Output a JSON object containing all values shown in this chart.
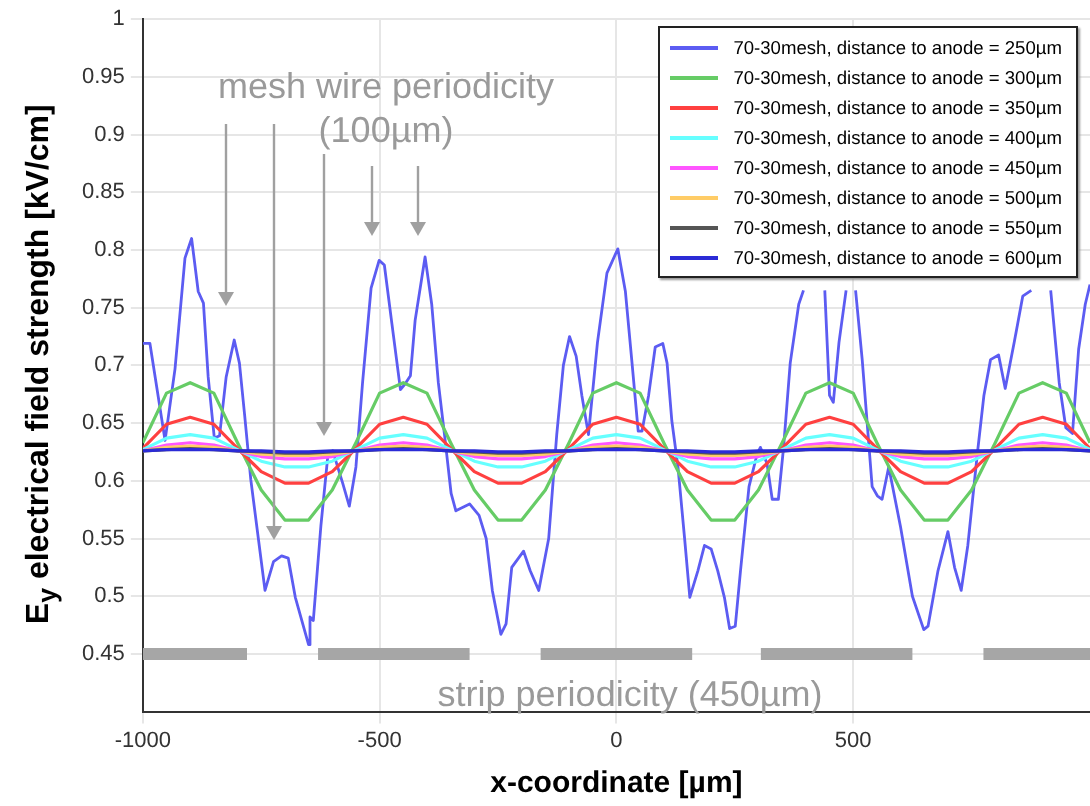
{
  "chart_data": {
    "type": "line",
    "xlabel": "x-coordinate [µm]",
    "ylabel": "E$_{y}$ electrical field strength [kV/cm]",
    "annotations": [
      "mesh wire periodicity (100µm)",
      "strip periodicity (450µm)"
    ],
    "x": [
      -1000,
      -950,
      -900,
      -850,
      -800,
      -750,
      -700,
      -650,
      -600,
      -550,
      -500,
      -450,
      -400,
      -350,
      -300,
      -250,
      -200,
      -150,
      -100,
      -50,
      0,
      50,
      100,
      150,
      200,
      250,
      300,
      350,
      400,
      450,
      500,
      550,
      600,
      650,
      700,
      750,
      800,
      850,
      900,
      950,
      1000
    ],
    "xlim": [
      -1000,
      1000
    ],
    "xticks": [
      -1000,
      -500,
      0,
      500
    ],
    "ylim": [
      0.4,
      1
    ],
    "yticks": [
      0.45,
      0.5,
      0.55,
      0.6,
      0.65,
      0.7,
      0.75,
      0.8,
      0.85,
      0.9,
      0.95,
      1
    ],
    "grid": true,
    "legend": "top right",
    "marker": "none",
    "line_style": "solid",
    "series": [
      {
        "name": "70-30mesh, distance to anode = 250µm",
        "color": "#5c5cf2",
        "x": [
          -1000,
          -985,
          -953,
          -932,
          -911,
          -897,
          -883,
          -872,
          -862,
          -849,
          -838,
          -824,
          -807,
          -796,
          -785,
          -772,
          -742,
          -724,
          -707,
          -693,
          -678,
          -650,
          -647,
          -640,
          -624,
          -609,
          -599,
          -578,
          -564,
          -550,
          -536,
          -518,
          -501,
          -490,
          -474,
          -456,
          -446,
          -435,
          -425,
          -404,
          -390,
          -376,
          -363,
          -349,
          -339,
          -310,
          -290,
          -275,
          -262,
          -244,
          -233,
          -221,
          -196,
          -182,
          -164,
          -143,
          -126,
          -112,
          -99,
          -85,
          -73,
          -59,
          -40,
          -20,
          3,
          19,
          33,
          46,
          54,
          68,
          82,
          98,
          107,
          117,
          130,
          144,
          155,
          172,
          186,
          200,
          214,
          228,
          239,
          251,
          262,
          280,
          297,
          304,
          318,
          329,
          342,
          353,
          367,
          385,
          395,
          415,
          440,
          450,
          458,
          470,
          485,
          495,
          505,
          519,
          540,
          551,
          561,
          575,
          600,
          625,
          649,
          658,
          679,
          700,
          714,
          728,
          742,
          762,
          776,
          790,
          807,
          821,
          840,
          858,
          876,
          895,
          917,
          935,
          949,
          963,
          976,
          990,
          1000
        ],
        "values": [
          0.719,
          0.719,
          0.635,
          0.697,
          0.793,
          0.81,
          0.764,
          0.754,
          0.69,
          0.637,
          0.639,
          0.69,
          0.722,
          0.702,
          0.657,
          0.601,
          0.505,
          0.53,
          0.535,
          0.533,
          0.499,
          0.458,
          0.482,
          0.479,
          0.561,
          0.623,
          0.626,
          0.598,
          0.578,
          0.612,
          0.685,
          0.767,
          0.791,
          0.787,
          0.736,
          0.679,
          0.684,
          0.691,
          0.739,
          0.794,
          0.753,
          0.685,
          0.64,
          0.589,
          0.574,
          0.58,
          0.57,
          0.55,
          0.505,
          0.467,
          0.476,
          0.525,
          0.539,
          0.522,
          0.505,
          0.55,
          0.64,
          0.7,
          0.725,
          0.708,
          0.674,
          0.64,
          0.72,
          0.78,
          0.801,
          0.764,
          0.702,
          0.643,
          0.643,
          0.674,
          0.716,
          0.719,
          0.702,
          0.652,
          0.612,
          0.55,
          0.499,
          0.522,
          0.544,
          0.541,
          0.522,
          0.499,
          0.472,
          0.474,
          0.522,
          0.595,
          0.623,
          0.629,
          0.615,
          0.584,
          0.584,
          0.629,
          0.702,
          0.753,
          0.765,
          null,
          0.765,
          0.674,
          0.668,
          0.72,
          0.765,
          null,
          0.765,
          0.705,
          0.595,
          0.587,
          0.584,
          0.612,
          0.56,
          0.5,
          0.471,
          0.474,
          0.522,
          0.556,
          0.525,
          0.505,
          0.544,
          0.623,
          0.674,
          0.705,
          0.709,
          0.68,
          0.72,
          0.76,
          0.765,
          null,
          0.765,
          0.685,
          0.646,
          0.641,
          0.714,
          0.753,
          0.77
        ]
      },
      {
        "name": "70-30mesh, distance to anode = 300µm",
        "color": "#66cc66",
        "values": [
          0.633,
          0.676,
          0.685,
          0.676,
          0.633,
          0.592,
          0.566,
          0.566,
          0.592,
          0.633,
          0.676,
          0.685,
          0.676,
          0.633,
          0.592,
          0.566,
          0.566,
          0.592,
          0.633,
          0.676,
          0.685,
          0.676,
          0.633,
          0.592,
          0.566,
          0.566,
          0.592,
          0.633,
          0.676,
          0.685,
          0.676,
          0.633,
          0.592,
          0.566,
          0.566,
          0.592,
          0.633,
          0.676,
          0.685,
          0.676,
          0.633
        ]
      },
      {
        "name": "70-30mesh, distance to anode = 350µm",
        "color": "#ff4040",
        "values": [
          0.628,
          0.649,
          0.655,
          0.649,
          0.628,
          0.608,
          0.598,
          0.598,
          0.608,
          0.628,
          0.649,
          0.655,
          0.649,
          0.628,
          0.608,
          0.598,
          0.598,
          0.608,
          0.628,
          0.649,
          0.655,
          0.649,
          0.628,
          0.608,
          0.598,
          0.598,
          0.608,
          0.628,
          0.649,
          0.655,
          0.649,
          0.628,
          0.608,
          0.598,
          0.598,
          0.608,
          0.628,
          0.649,
          0.655,
          0.649,
          0.628
        ]
      },
      {
        "name": "70-30mesh, distance to anode = 400µm",
        "color": "#66ffff",
        "values": [
          0.627,
          0.637,
          0.64,
          0.637,
          0.627,
          0.617,
          0.612,
          0.612,
          0.617,
          0.627,
          0.637,
          0.64,
          0.637,
          0.627,
          0.617,
          0.612,
          0.612,
          0.617,
          0.627,
          0.637,
          0.64,
          0.637,
          0.627,
          0.617,
          0.612,
          0.612,
          0.617,
          0.627,
          0.637,
          0.64,
          0.637,
          0.627,
          0.617,
          0.612,
          0.612,
          0.617,
          0.627,
          0.637,
          0.64,
          0.637,
          0.627
        ]
      },
      {
        "name": "70-30mesh, distance to anode = 450µm",
        "color": "#ff55ff",
        "values": [
          0.626,
          0.631,
          0.633,
          0.631,
          0.626,
          0.621,
          0.619,
          0.619,
          0.621,
          0.626,
          0.631,
          0.633,
          0.631,
          0.626,
          0.621,
          0.619,
          0.619,
          0.621,
          0.626,
          0.631,
          0.633,
          0.631,
          0.626,
          0.621,
          0.619,
          0.619,
          0.621,
          0.626,
          0.631,
          0.633,
          0.631,
          0.626,
          0.621,
          0.619,
          0.619,
          0.621,
          0.626,
          0.631,
          0.633,
          0.631,
          0.626
        ]
      },
      {
        "name": "70-30mesh, distance to anode = 500µm",
        "color": "#ffcc66",
        "values": [
          0.626,
          0.629,
          0.63,
          0.629,
          0.626,
          0.623,
          0.622,
          0.622,
          0.623,
          0.626,
          0.629,
          0.63,
          0.629,
          0.626,
          0.623,
          0.622,
          0.622,
          0.623,
          0.626,
          0.629,
          0.63,
          0.629,
          0.626,
          0.623,
          0.622,
          0.622,
          0.623,
          0.626,
          0.629,
          0.63,
          0.629,
          0.626,
          0.623,
          0.622,
          0.622,
          0.623,
          0.626,
          0.629,
          0.63,
          0.629,
          0.626
        ]
      },
      {
        "name": "70-30mesh, distance to anode = 550µm",
        "color": "#555555",
        "values": [
          0.626,
          0.627,
          0.628,
          0.627,
          0.626,
          0.625,
          0.624,
          0.624,
          0.625,
          0.626,
          0.627,
          0.628,
          0.627,
          0.626,
          0.625,
          0.624,
          0.624,
          0.625,
          0.626,
          0.627,
          0.628,
          0.627,
          0.626,
          0.625,
          0.624,
          0.624,
          0.625,
          0.626,
          0.627,
          0.628,
          0.627,
          0.626,
          0.625,
          0.624,
          0.624,
          0.625,
          0.626,
          0.627,
          0.628,
          0.627,
          0.626
        ]
      },
      {
        "name": "70-30mesh, distance to anode = 600µm",
        "color": "#2b2bd6",
        "values": [
          0.626,
          0.627,
          0.627,
          0.627,
          0.626,
          0.626,
          0.625,
          0.625,
          0.626,
          0.626,
          0.627,
          0.627,
          0.627,
          0.626,
          0.626,
          0.625,
          0.625,
          0.626,
          0.626,
          0.627,
          0.627,
          0.627,
          0.626,
          0.626,
          0.625,
          0.625,
          0.626,
          0.626,
          0.627,
          0.627,
          0.627,
          0.626,
          0.626,
          0.625,
          0.625,
          0.626,
          0.626,
          0.627,
          0.627,
          0.627,
          0.626
        ]
      },
      {
        "type": "line",
        "color": "#a6a6a6",
        "x": [
          -1000,
          -780,
          -705,
          -630,
          -310,
          -235,
          -160,
          160,
          232,
          305,
          625,
          700,
          775,
          1000
        ],
        "values": [
          0.45,
          0.45,
          null,
          0.45,
          0.45,
          null,
          0.45,
          0.45,
          null,
          0.45,
          0.45,
          null,
          0.45,
          0.45
        ]
      }
    ]
  }
}
